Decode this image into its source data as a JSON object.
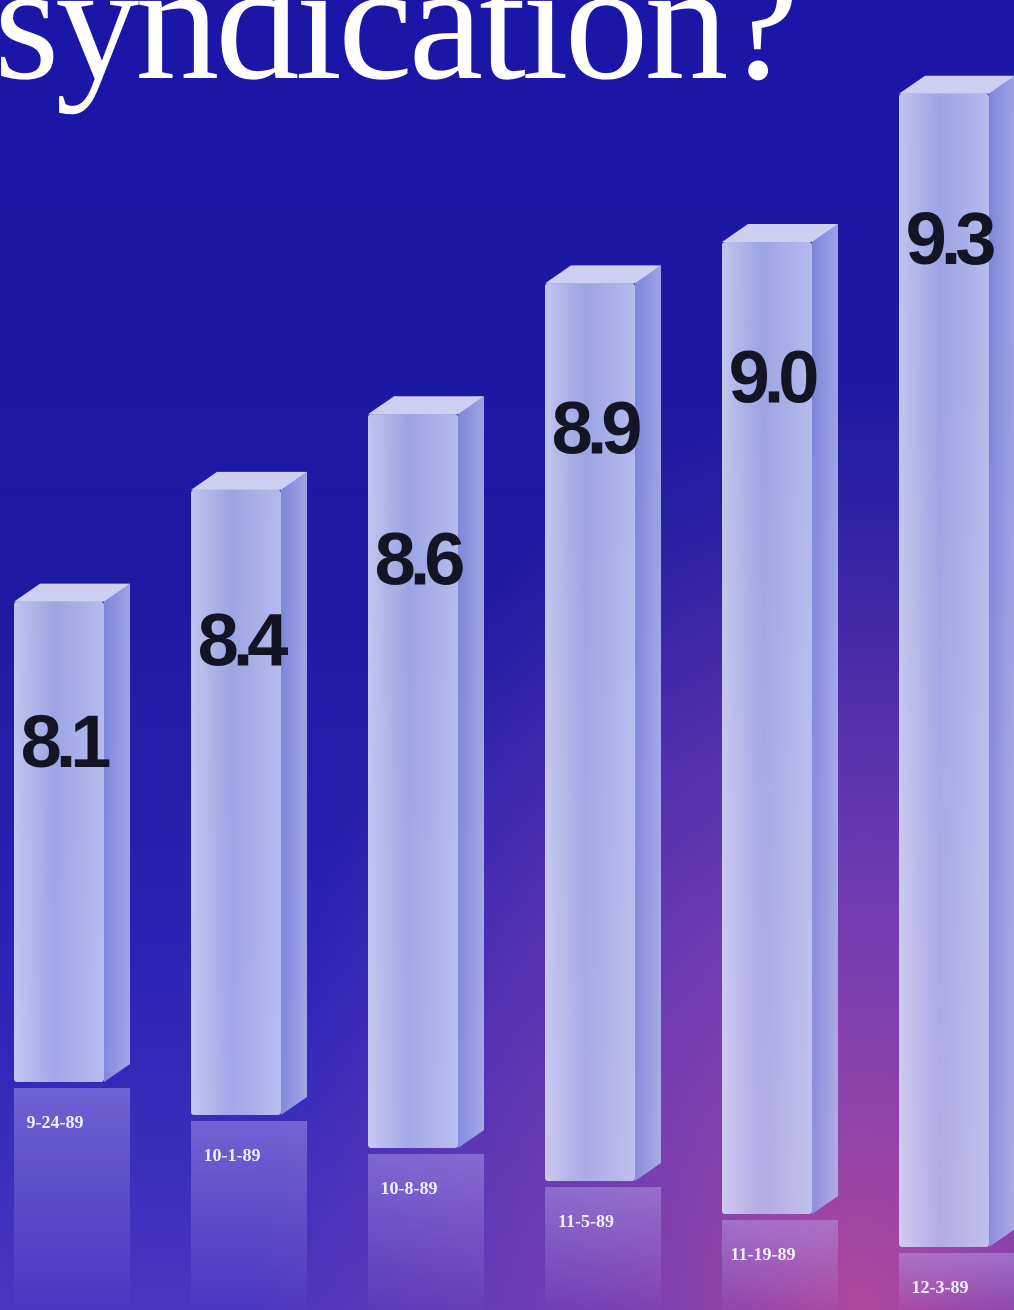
{
  "headline": "syndication?",
  "chart_data": {
    "type": "bar",
    "categories": [
      "9-24-89",
      "10-1-89",
      "10-8-89",
      "11-5-89",
      "11-19-89",
      "12-3-89"
    ],
    "values": [
      8.1,
      8.4,
      8.6,
      8.9,
      9.0,
      9.3
    ],
    "value_labels": [
      "8.1",
      "8.4",
      "8.6",
      "8.9",
      "9.0",
      "9.3"
    ],
    "title": "",
    "xlabel": "",
    "ylabel": "",
    "ylim": [
      7.5,
      9.4
    ],
    "grid": false,
    "legend": "none",
    "colors": {
      "bar_face": "#c8d0f4",
      "bar_side": "#9aa6e8",
      "bar_top": "#eef0ff",
      "label": "#141424"
    }
  }
}
